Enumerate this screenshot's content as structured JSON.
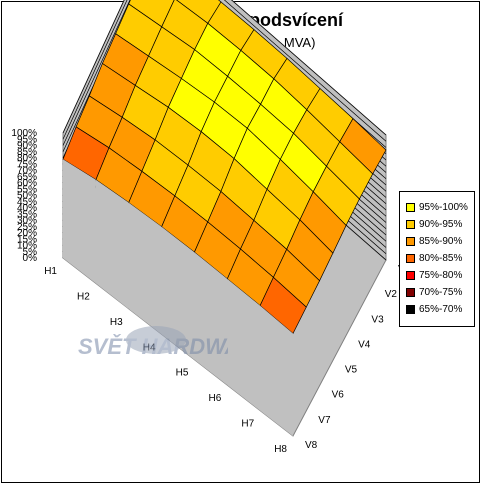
{
  "chart_data": {
    "type": "surface3d",
    "title": "Homogenita podsvícení",
    "subtitle": "Formac 1900 (8ms, MVA)",
    "z_ticks": [
      "100%",
      "95%",
      "90%",
      "85%",
      "80%",
      "75%",
      "70%",
      "65%",
      "60%",
      "55%",
      "50%",
      "45%",
      "40%",
      "35%",
      "30%",
      "25%",
      "20%",
      "15%",
      "10%",
      "5%",
      "0%"
    ],
    "x_categories": [
      "H1",
      "H2",
      "H3",
      "H4",
      "H5",
      "H6",
      "H7",
      "H8"
    ],
    "y_categories": [
      "V1",
      "V2",
      "V3",
      "V4",
      "V5",
      "V6",
      "V7",
      "V8"
    ],
    "zlim": [
      0,
      100
    ],
    "legend": [
      {
        "label": "95%-100%",
        "color": "#FFFF00"
      },
      {
        "label": "90%-95%",
        "color": "#FFCC00"
      },
      {
        "label": "85%-90%",
        "color": "#FF9900"
      },
      {
        "label": "80%-85%",
        "color": "#FF6600"
      },
      {
        "label": "75%-80%",
        "color": "#FF0000"
      },
      {
        "label": "70%-75%",
        "color": "#800000"
      },
      {
        "label": "65%-70%",
        "color": "#000000"
      }
    ],
    "values": [
      [
        92,
        90,
        91,
        92,
        92,
        91,
        90,
        88
      ],
      [
        90,
        93,
        96,
        97,
        97,
        95,
        92,
        89
      ],
      [
        89,
        93,
        97,
        98,
        98,
        97,
        93,
        89
      ],
      [
        88,
        92,
        96,
        99,
        100,
        97,
        93,
        88
      ],
      [
        87,
        91,
        95,
        97,
        97,
        94,
        91,
        86
      ],
      [
        84,
        88,
        91,
        92,
        92,
        90,
        88,
        84
      ],
      [
        82,
        86,
        88,
        89,
        89,
        88,
        86,
        83
      ],
      [
        79,
        83,
        85,
        86,
        86,
        85,
        84,
        82
      ]
    ]
  },
  "watermark": {
    "text": "SVĚT HARDWARE"
  }
}
